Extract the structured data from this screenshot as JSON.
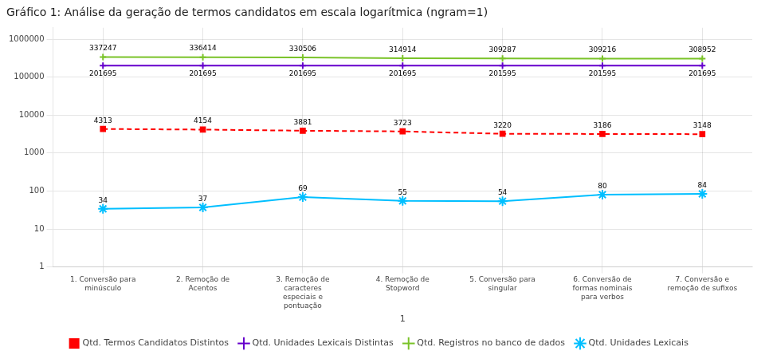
{
  "chart_data": {
    "type": "line",
    "title": "Gráfico 1: Análise da geração de termos candidatos em escala logarítmica (ngram=1)",
    "xlabel": "1",
    "categories": [
      "1. Conversão para\nminúsculo",
      "2. Remoção de\nAcentos",
      "3. Remoção de\ncaracteres\nespeciais e\npontuação",
      "4. Remoção de\nStopword",
      "5. Conversão para\nsingular",
      "6. Conversão de\nformas nominais\npara verbos",
      "7. Conversão e\nremoção de sufixos"
    ],
    "series": [
      {
        "name": "Qtd. Termos Candidatos Distintos",
        "color": "#FF0000",
        "marker": "square",
        "line_style": "dashed",
        "values": [
          4313,
          4154,
          3881,
          3723,
          3220,
          3186,
          3148
        ]
      },
      {
        "name": "Qtd. Unidades Lexicais Distintas",
        "color": "#6600CC",
        "marker": "plus",
        "line_style": "solid",
        "values": [
          201695,
          201695,
          201695,
          201695,
          201595,
          201595,
          201695
        ]
      },
      {
        "name": "Qtd. Registros no banco de dados",
        "color": "#7AC329",
        "marker": "plus",
        "line_style": "solid",
        "values": [
          337247,
          336414,
          330506,
          314914,
          309287,
          309216,
          308952
        ]
      },
      {
        "name": "Qtd. Unidades Lexicais",
        "color": "#00BFFF",
        "marker": "star",
        "line_style": "solid",
        "values": [
          34,
          37,
          69,
          55,
          54,
          80,
          84
        ]
      }
    ],
    "log": "y",
    "ylim": [
      1,
      2000000
    ],
    "yticks": [
      1,
      10,
      100,
      1000,
      10000,
      100000,
      1000000
    ],
    "grid": true,
    "legend": "bottom",
    "data_labels": true
  }
}
